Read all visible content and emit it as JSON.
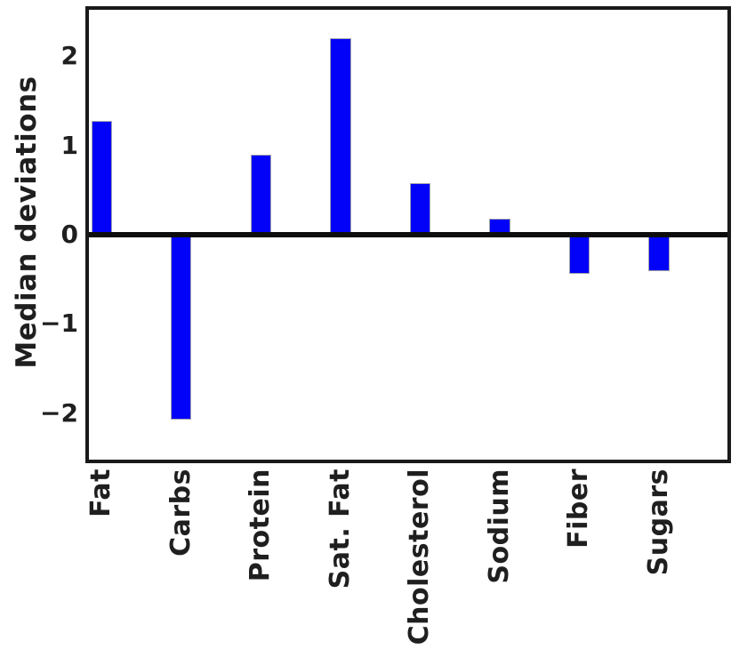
{
  "chart_data": {
    "type": "bar",
    "title": "",
    "xlabel": "",
    "ylabel": "Median deviations",
    "categories": [
      "Fat",
      "Carbs",
      "Protein",
      "Sat. Fat",
      "Cholesterol",
      "Sodium",
      "Fiber",
      "Sugars"
    ],
    "values": [
      1.27,
      -2.07,
      0.9,
      2.2,
      0.58,
      0.18,
      -0.44,
      -0.41
    ],
    "y_ticks": [
      2,
      1,
      0,
      -1,
      -2
    ],
    "y_tick_labels": [
      "2",
      "1",
      "0",
      "−1",
      "−2"
    ],
    "ylim": [
      -2.52,
      2.52
    ],
    "xlim": [
      -0.16,
      7.86
    ],
    "bar_width": 0.26,
    "grid": false,
    "legend_position": "none",
    "zero_line": true,
    "bar_color": "#0202f8",
    "bar_edge_color": "#a3a3ae",
    "axis_color": "#1a1a1a",
    "zero_line_color": "#0d0d0d",
    "text_color": "#1f1f1f",
    "background_color": "#ffffff"
  }
}
